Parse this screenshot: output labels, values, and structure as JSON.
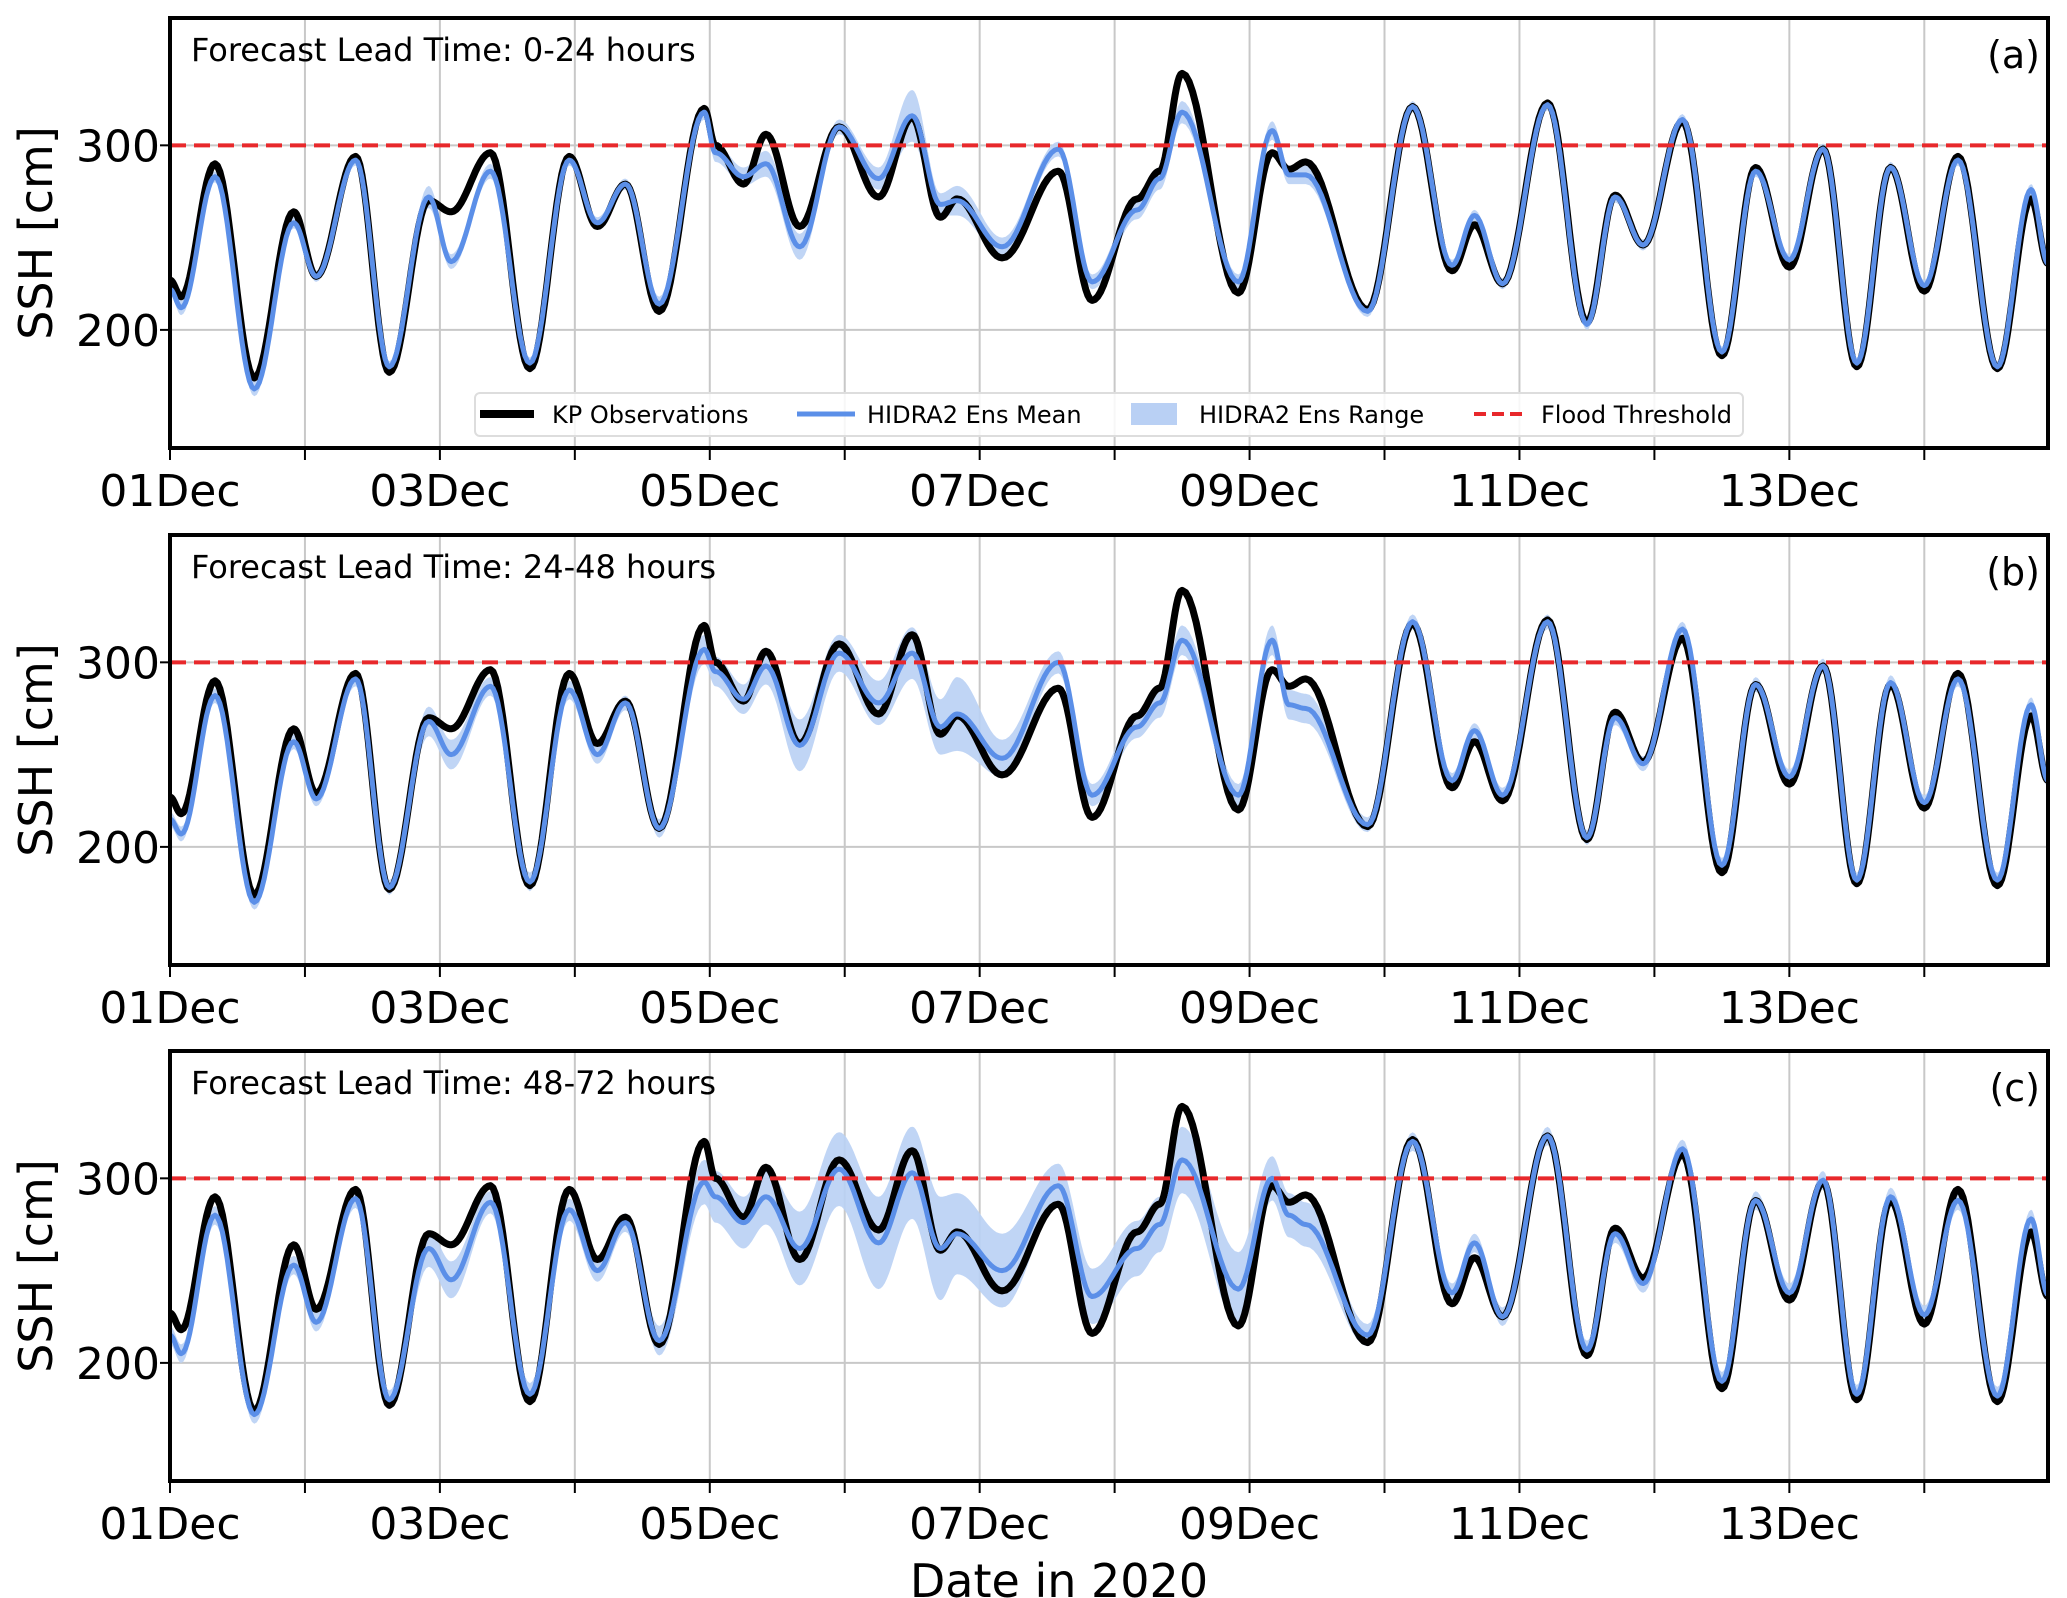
{
  "chart_data": [
    {
      "type": "line",
      "panel_label": "(a)",
      "annotation": "Forecast Lead Time: 0-24 hours",
      "ylabel": "SSH [cm]",
      "xlabel": "",
      "ylim": [
        136,
        369
      ],
      "xlim": [
        "2020-12-01T00:00",
        "2020-12-14T22:00"
      ],
      "yticks": [
        200,
        300
      ],
      "xtick_labels": [
        "01Dec",
        "03Dec",
        "05Dec",
        "07Dec",
        "09Dec",
        "11Dec",
        "13Dec"
      ],
      "grid": true,
      "flood_threshold": 300,
      "legend": {
        "placement": "lower-center",
        "entries": [
          "KP Observations",
          "HIDRA2 Ens Mean",
          "HIDRA2 Ens Range",
          "Flood Threshold"
        ]
      },
      "series": {
        "mean": [
          222,
          212,
          283,
          168,
          258,
          229,
          292,
          180,
          272,
          237,
          286,
          182,
          292,
          258,
          279,
          214,
          318,
          296,
          283,
          290,
          245,
          310,
          282,
          316,
          268,
          270,
          245,
          298,
          226,
          265,
          282,
          318,
          226,
          308,
          284,
          284,
          210,
          321,
          235,
          262,
          225,
          322,
          203,
          272,
          246,
          314,
          188,
          286,
          238,
          298,
          182,
          288,
          224,
          292,
          180,
          276,
          236
        ],
        "range_halfwidth": [
          3,
          4,
          3,
          4,
          3,
          3,
          3,
          3,
          6,
          4,
          4,
          3,
          3,
          3,
          3,
          4,
          4,
          5,
          5,
          7,
          7,
          4,
          6,
          14,
          6,
          8,
          5,
          4,
          4,
          5,
          6,
          6,
          4,
          5,
          5,
          5,
          3,
          3,
          3,
          3,
          3,
          3,
          3,
          3,
          3,
          3,
          3,
          3,
          3,
          3,
          3,
          3,
          3,
          3,
          3,
          3,
          3
        ]
      }
    },
    {
      "type": "line",
      "panel_label": "(b)",
      "annotation": "Forecast Lead Time: 24-48 hours",
      "ylabel": "SSH [cm]",
      "xlabel": "",
      "ylim": [
        136,
        369
      ],
      "xlim": [
        "2020-12-01T00:00",
        "2020-12-14T22:00"
      ],
      "yticks": [
        200,
        300
      ],
      "xtick_labels": [
        "01Dec",
        "03Dec",
        "05Dec",
        "07Dec",
        "09Dec",
        "11Dec",
        "13Dec"
      ],
      "grid": true,
      "flood_threshold": 300,
      "series": {
        "mean": [
          215,
          207,
          282,
          170,
          257,
          226,
          291,
          178,
          268,
          250,
          287,
          181,
          285,
          250,
          278,
          210,
          307,
          295,
          280,
          298,
          255,
          305,
          278,
          305,
          265,
          272,
          248,
          300,
          228,
          265,
          278,
          312,
          228,
          312,
          277,
          275,
          212,
          322,
          236,
          263,
          228,
          322,
          205,
          270,
          245,
          318,
          190,
          288,
          238,
          298,
          182,
          289,
          224,
          291,
          182,
          277,
          236
        ],
        "range_halfwidth": [
          4,
          4,
          4,
          4,
          4,
          4,
          4,
          4,
          8,
          8,
          5,
          5,
          5,
          5,
          4,
          5,
          8,
          8,
          8,
          10,
          14,
          10,
          12,
          14,
          15,
          20,
          10,
          6,
          6,
          6,
          8,
          8,
          6,
          8,
          8,
          8,
          4,
          4,
          4,
          4,
          4,
          4,
          4,
          4,
          4,
          4,
          4,
          4,
          4,
          4,
          4,
          4,
          4,
          4,
          4,
          4,
          4
        ]
      }
    },
    {
      "type": "line",
      "panel_label": "(c)",
      "annotation": "Forecast Lead Time: 48-72 hours",
      "ylabel": "SSH [cm]",
      "xlabel": "Date in 2020",
      "ylim": [
        136,
        369
      ],
      "xlim": [
        "2020-12-01T00:00",
        "2020-12-14T22:00"
      ],
      "yticks": [
        200,
        300
      ],
      "xtick_labels": [
        "01Dec",
        "03Dec",
        "05Dec",
        "07Dec",
        "09Dec",
        "11Dec",
        "13Dec"
      ],
      "grid": true,
      "flood_threshold": 300,
      "series": {
        "mean": [
          215,
          205,
          280,
          172,
          253,
          222,
          289,
          180,
          262,
          245,
          287,
          183,
          283,
          250,
          276,
          212,
          298,
          290,
          276,
          290,
          262,
          305,
          265,
          303,
          262,
          270,
          250,
          296,
          236,
          262,
          275,
          310,
          240,
          300,
          280,
          275,
          215,
          320,
          238,
          265,
          225,
          323,
          207,
          270,
          243,
          316,
          190,
          288,
          238,
          299,
          183,
          290,
          226,
          288,
          182,
          278,
          237
        ],
        "range_halfwidth": [
          5,
          5,
          5,
          5,
          5,
          5,
          5,
          5,
          10,
          10,
          6,
          6,
          6,
          6,
          5,
          8,
          12,
          14,
          14,
          15,
          20,
          20,
          25,
          25,
          28,
          22,
          20,
          12,
          15,
          15,
          15,
          18,
          20,
          12,
          12,
          12,
          6,
          5,
          5,
          5,
          5,
          5,
          5,
          5,
          5,
          5,
          5,
          5,
          5,
          5,
          5,
          5,
          5,
          5,
          5,
          5,
          5
        ]
      }
    }
  ],
  "shared": {
    "x": [
      "2020-12-01T00:00",
      "2020-12-01T02:00",
      "2020-12-01T08:00",
      "2020-12-01T15:00",
      "2020-12-01T22:00",
      "2020-12-02T02:00",
      "2020-12-02T09:00",
      "2020-12-02T15:00",
      "2020-12-02T22:00",
      "2020-12-03T02:00",
      "2020-12-03T09:00",
      "2020-12-03T16:00",
      "2020-12-03T23:00",
      "2020-12-04T04:00",
      "2020-12-04T09:00",
      "2020-12-04T15:00",
      "2020-12-04T23:00",
      "2020-12-05T01:00",
      "2020-12-05T06:00",
      "2020-12-05T10:00",
      "2020-12-05T16:00",
      "2020-12-05T23:00",
      "2020-12-06T06:00",
      "2020-12-06T12:00",
      "2020-12-06T17:00",
      "2020-12-06T20:00",
      "2020-12-07T04:00",
      "2020-12-07T14:00",
      "2020-12-07T20:00",
      "2020-12-08T04:00",
      "2020-12-08T08:00",
      "2020-12-08T12:00",
      "2020-12-08T22:00",
      "2020-12-09T04:00",
      "2020-12-09T07:00",
      "2020-12-09T10:00",
      "2020-12-09T21:00",
      "2020-12-10T05:00",
      "2020-12-10T12:00",
      "2020-12-10T16:00",
      "2020-12-10T21:00",
      "2020-12-11T05:00",
      "2020-12-11T12:00",
      "2020-12-11T17:00",
      "2020-12-11T22:00",
      "2020-12-12T05:00",
      "2020-12-12T12:00",
      "2020-12-12T18:00",
      "2020-12-13T00:00",
      "2020-12-13T06:00",
      "2020-12-13T12:00",
      "2020-12-13T18:00",
      "2020-12-14T00:00",
      "2020-12-14T06:00",
      "2020-12-14T13:00",
      "2020-12-14T19:00",
      "2020-12-14T22:00"
    ],
    "observations": [
      227,
      218,
      290,
      174,
      264,
      229,
      294,
      177,
      270,
      264,
      296,
      179,
      294,
      256,
      279,
      210,
      320,
      300,
      279,
      306,
      256,
      310,
      272,
      315,
      261,
      271,
      239,
      286,
      216,
      271,
      286,
      339,
      220,
      296,
      287,
      291,
      211,
      321,
      232,
      257,
      225,
      323,
      204,
      273,
      246,
      313,
      186,
      288,
      234,
      298,
      180,
      288,
      221,
      294,
      179,
      271,
      236
    ]
  },
  "legend_labels": {
    "obs": "KP Observations",
    "mean": "HIDRA2 Ens Mean",
    "range": "HIDRA2 Ens Range",
    "flood": "Flood Threshold"
  },
  "colors": {
    "observations": "#000000",
    "mean": "#5b8fe8",
    "range": "#b9d0f4",
    "flood": "#e8282b",
    "grid": "#c8c8c8"
  }
}
